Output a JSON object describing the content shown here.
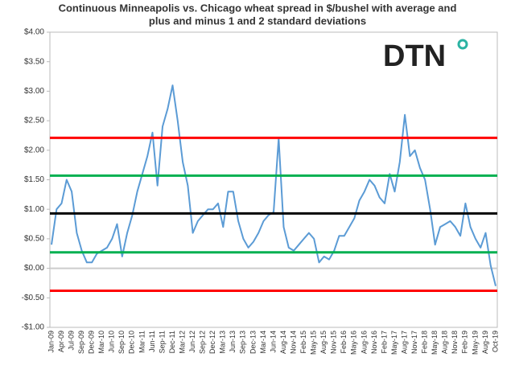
{
  "chart_data": {
    "type": "line",
    "title": [
      "Continuous Minneapolis vs. Chicago wheat spread in $/bushel with average and",
      "plus and minus 1 and 2 standard deviations"
    ],
    "logo": "DTN",
    "categories": [
      "Jan-09",
      null,
      "Apr-09",
      null,
      "Jul-09",
      null,
      "Sep-09",
      null,
      "Dec-09",
      null,
      "Mar-10",
      null,
      "Jun-10",
      null,
      "Sep-10",
      null,
      "Dec-10",
      null,
      "Mar-11",
      null,
      "Jun-11",
      null,
      "Sep-11",
      null,
      "Dec-11",
      null,
      "Mar-12",
      null,
      "Jun-12",
      null,
      "Sep-12",
      null,
      "Dec-12",
      null,
      "Mar-13",
      null,
      "Jun-13",
      null,
      "Sep-13",
      null,
      "Dec-13",
      null,
      "Mar-14",
      null,
      "Jun-14",
      null,
      "Aug-14",
      null,
      "Nov-14",
      null,
      "Feb-15",
      null,
      "May-15",
      null,
      "Aug-15",
      null,
      "Nov-15",
      null,
      "Feb-16",
      null,
      "May-16",
      null,
      "Aug-16",
      null,
      "Nov-16",
      null,
      "Feb-17",
      null,
      "May-17",
      null,
      "Aug-17",
      null,
      "Nov-17",
      null,
      "Feb-18",
      null,
      "May-18",
      null,
      "Aug-18",
      null,
      "Nov-18",
      null,
      "Feb-19",
      null,
      "May-19",
      null,
      "Aug-19",
      null,
      "Oct-19"
    ],
    "values": [
      0.4,
      1.0,
      1.1,
      1.5,
      1.3,
      0.6,
      0.3,
      0.1,
      0.1,
      0.25,
      0.3,
      0.35,
      0.5,
      0.75,
      0.2,
      0.6,
      0.9,
      1.3,
      1.6,
      1.9,
      2.3,
      1.4,
      2.4,
      2.7,
      3.1,
      2.5,
      1.8,
      1.4,
      0.6,
      0.8,
      0.9,
      1.0,
      1.0,
      1.1,
      0.7,
      1.3,
      1.3,
      0.8,
      0.5,
      0.35,
      0.45,
      0.6,
      0.8,
      0.9,
      0.95,
      2.2,
      0.7,
      0.35,
      0.3,
      0.4,
      0.5,
      0.6,
      0.5,
      0.1,
      0.2,
      0.15,
      0.3,
      0.55,
      0.55,
      0.7,
      0.85,
      1.15,
      1.3,
      1.5,
      1.4,
      1.2,
      1.1,
      1.6,
      1.3,
      1.8,
      2.6,
      1.9,
      2.0,
      1.7,
      1.5,
      1.0,
      0.4,
      0.7,
      0.75,
      0.8,
      0.7,
      0.55,
      1.1,
      0.7,
      0.5,
      0.35,
      0.6,
      0.05,
      -0.3
    ],
    "color": "#5b9bd5",
    "reference_lines": [
      {
        "value": 2.21,
        "color": "#ff0000"
      },
      {
        "value": 1.57,
        "color": "#00b050"
      },
      {
        "value": 0.93,
        "color": "#000000"
      },
      {
        "value": 0.27,
        "color": "#00b050"
      },
      {
        "value": -0.38,
        "color": "#ff0000"
      }
    ],
    "ylim": [
      -1,
      4
    ],
    "yticks": [
      {
        "value": -1,
        "label": "-$1.00"
      },
      {
        "value": -0.5,
        "label": "-$0.50"
      },
      {
        "value": 0,
        "label": "$0.00"
      },
      {
        "value": 0.5,
        "label": "$0.50"
      },
      {
        "value": 1,
        "label": "$1.00"
      },
      {
        "value": 1.5,
        "label": "$1.50"
      },
      {
        "value": 2,
        "label": "$2.00"
      },
      {
        "value": 2.5,
        "label": "$2.50"
      },
      {
        "value": 3,
        "label": "$3.00"
      },
      {
        "value": 3.5,
        "label": "$3.50"
      },
      {
        "value": 4,
        "label": "$4.00"
      }
    ],
    "grid": false
  }
}
